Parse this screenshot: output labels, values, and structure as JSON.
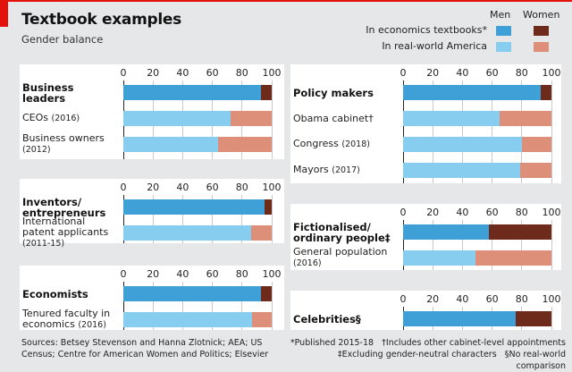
{
  "header": {
    "title": "Textbook examples",
    "subtitle": "Gender balance"
  },
  "legend": {
    "men": "Men",
    "women": "Women",
    "textbooks": "In economics textbooks*",
    "real_world": "In real-world America"
  },
  "colors": {
    "textbook_men": "#3fa0d7",
    "textbook_women": "#6e2a1a",
    "real_men": "#86cdf0",
    "real_women": "#de8f7a",
    "accent": "#e3120b"
  },
  "chart_data": {
    "type": "bar",
    "stacked": true,
    "orientation": "horizontal",
    "xlim": [
      0,
      100
    ],
    "xticks": [
      "0",
      "20",
      "40",
      "60",
      "80",
      "100"
    ],
    "panels": [
      {
        "rows": [
          {
            "label": "Business leaders",
            "year": "",
            "kind": "textbook",
            "men": 93,
            "women": 7
          },
          {
            "label": "CEOs",
            "year": "(2016)",
            "kind": "real",
            "men": 72,
            "women": 28
          },
          {
            "label": "Business owners",
            "year": "(2012)",
            "kind": "real",
            "men": 64,
            "women": 36
          }
        ]
      },
      {
        "rows": [
          {
            "label": "Inventors/ entrepreneurs",
            "year": "",
            "kind": "textbook",
            "men": 95,
            "women": 5
          },
          {
            "label": "International patent applicants",
            "year": "(2011-15)",
            "kind": "real",
            "men": 86,
            "women": 14
          }
        ]
      },
      {
        "rows": [
          {
            "label": "Economists",
            "year": "",
            "kind": "textbook",
            "men": 93,
            "women": 7
          },
          {
            "label": "Tenured faculty in economics",
            "year": "(2016)",
            "kind": "real",
            "men": 87,
            "women": 13
          }
        ]
      },
      {
        "rows": [
          {
            "label": "Policy makers",
            "year": "",
            "kind": "textbook",
            "men": 93,
            "women": 7
          },
          {
            "label": "Obama cabinet†",
            "year": "",
            "kind": "real",
            "men": 65,
            "women": 35
          },
          {
            "label": "Congress",
            "year": "(2018)",
            "kind": "real",
            "men": 80,
            "women": 20
          },
          {
            "label": "Mayors",
            "year": "(2017)",
            "kind": "real",
            "men": 79,
            "women": 21
          }
        ]
      },
      {
        "rows": [
          {
            "label": "Fictionalised/ ordinary people‡",
            "year": "",
            "kind": "textbook",
            "men": 58,
            "women": 42
          },
          {
            "label": "General population",
            "year": "(2016)",
            "kind": "real",
            "men": 49,
            "women": 51
          }
        ]
      },
      {
        "rows": [
          {
            "label": "Celebrities§",
            "year": "",
            "kind": "textbook",
            "men": 76,
            "women": 24
          }
        ]
      }
    ]
  },
  "footer": {
    "sources": "Sources: Betsey Stevenson and Hanna Zlotnick; AEA; US Census; Centre for American Women and Politics; Elsevier",
    "note1": "*Published 2015-18",
    "note2": "†Includes other cabinet-level appointments",
    "note3": "‡Excluding gender-neutral characters",
    "note4": "§No real-world comparison"
  }
}
